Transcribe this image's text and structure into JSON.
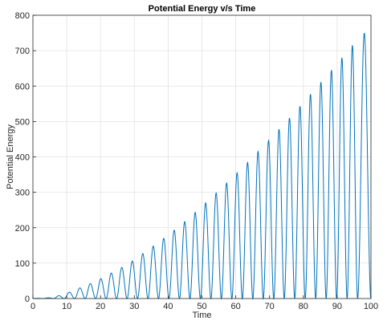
{
  "chart_data": {
    "type": "line",
    "title": "Potential Energy v/s Time",
    "xlabel": "Time",
    "ylabel": "Potential Energy",
    "xlim": [
      0,
      100
    ],
    "ylim": [
      0,
      800
    ],
    "x_ticks": [
      "0",
      "10",
      "20",
      "30",
      "40",
      "50",
      "60",
      "70",
      "80",
      "90",
      "100"
    ],
    "y_ticks": [
      "0",
      "100",
      "200",
      "300",
      "400",
      "500",
      "600",
      "700",
      "800"
    ],
    "grid": true,
    "legend": "none",
    "line_color": "#0072bd",
    "series": [
      {
        "peaks": [
          {
            "x": 1.5,
            "y": 0.5
          },
          {
            "x": 4.6,
            "y": 2
          },
          {
            "x": 7.7,
            "y": 8
          },
          {
            "x": 10.8,
            "y": 18
          },
          {
            "x": 13.9,
            "y": 30
          },
          {
            "x": 17.0,
            "y": 42
          },
          {
            "x": 20.1,
            "y": 56
          },
          {
            "x": 23.2,
            "y": 72
          },
          {
            "x": 26.3,
            "y": 88
          },
          {
            "x": 29.4,
            "y": 106
          },
          {
            "x": 32.5,
            "y": 127
          },
          {
            "x": 35.6,
            "y": 148
          },
          {
            "x": 38.7,
            "y": 170
          },
          {
            "x": 41.8,
            "y": 193
          },
          {
            "x": 44.9,
            "y": 217
          },
          {
            "x": 48.0,
            "y": 243
          },
          {
            "x": 51.1,
            "y": 270
          },
          {
            "x": 54.2,
            "y": 298
          },
          {
            "x": 57.3,
            "y": 326
          },
          {
            "x": 60.4,
            "y": 355
          },
          {
            "x": 63.5,
            "y": 384
          },
          {
            "x": 66.6,
            "y": 415
          },
          {
            "x": 69.7,
            "y": 446
          },
          {
            "x": 72.8,
            "y": 478
          },
          {
            "x": 75.9,
            "y": 510
          },
          {
            "x": 79.0,
            "y": 543
          },
          {
            "x": 82.1,
            "y": 577
          },
          {
            "x": 85.2,
            "y": 611
          },
          {
            "x": 88.3,
            "y": 645
          },
          {
            "x": 91.4,
            "y": 680
          },
          {
            "x": 94.5,
            "y": 715
          },
          {
            "x": 97.6,
            "y": 750
          }
        ]
      }
    ]
  }
}
